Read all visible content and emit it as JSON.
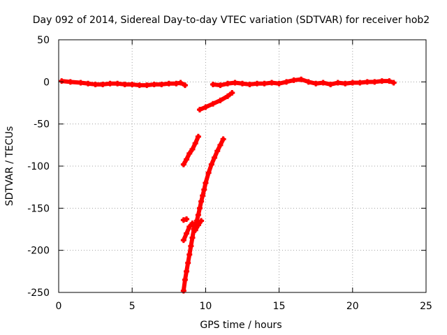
{
  "chart_data": {
    "type": "scatter",
    "title": "Day 092 of 2014, Sidereal Day-to-day VTEC variation (SDTVAR) for receiver hob2",
    "xlabel": "GPS time / hours",
    "ylabel": "SDTVAR / TECUs",
    "xlim": [
      0,
      25
    ],
    "ylim": [
      -250,
      50
    ],
    "xticks": [
      0,
      5,
      10,
      15,
      20,
      25
    ],
    "yticks": [
      -250,
      -200,
      -150,
      -100,
      -50,
      0,
      50
    ],
    "xtick_labels": [
      "0",
      "5",
      "10",
      "15",
      "20",
      "25"
    ],
    "ytick_labels": [
      "-250",
      "-200",
      "-150",
      "-100",
      "-50",
      "0",
      "50"
    ],
    "grid": true,
    "marker": "plus",
    "color": "#ff0000",
    "series": [
      {
        "name": "main-arc-early",
        "x": [
          0.2,
          0.8,
          1.5,
          2.0,
          2.5,
          3.0,
          3.5,
          4.0,
          4.5,
          5.0,
          5.5,
          6.0,
          6.5,
          7.0,
          7.5,
          8.0,
          8.3,
          8.6
        ],
        "y": [
          1,
          0,
          -1,
          -2,
          -3,
          -3,
          -2,
          -2,
          -3,
          -3,
          -4,
          -4,
          -3,
          -3,
          -2,
          -2,
          -1,
          -4
        ]
      },
      {
        "name": "main-arc-late",
        "x": [
          10.5,
          11.0,
          11.5,
          12.0,
          12.5,
          13.0,
          13.5,
          14.0,
          14.5,
          15.0,
          15.5,
          16.0,
          16.5,
          17.0,
          17.5,
          18.0,
          18.5,
          19.0,
          19.5,
          20.0,
          20.5,
          21.0,
          21.5,
          22.0,
          22.5,
          22.8
        ],
        "y": [
          -3,
          -4,
          -2,
          -1,
          -2,
          -3,
          -2,
          -2,
          -1,
          -2,
          0,
          2,
          3,
          0,
          -2,
          -1,
          -3,
          -1,
          -2,
          -1,
          -1,
          0,
          0,
          1,
          1,
          -1
        ]
      },
      {
        "name": "arc-a",
        "x": [
          9.6,
          10.0,
          10.5,
          11.0,
          11.5,
          11.8
        ],
        "y": [
          -33,
          -30,
          -26,
          -22,
          -17,
          -13
        ]
      },
      {
        "name": "arc-b",
        "x": [
          8.5,
          8.7,
          8.9,
          9.1,
          9.3,
          9.5
        ],
        "y": [
          -98,
          -92,
          -85,
          -80,
          -73,
          -65
        ]
      },
      {
        "name": "arc-c",
        "x": [
          8.5,
          8.6,
          8.7,
          8.8,
          8.9,
          9.0,
          9.1,
          9.2,
          9.3,
          9.4,
          9.5,
          9.6,
          9.7,
          9.8,
          9.9,
          10.0,
          10.2,
          10.4,
          10.6,
          10.8,
          11.0,
          11.2
        ],
        "y": [
          -248,
          -235,
          -225,
          -215,
          -205,
          -195,
          -185,
          -175,
          -170,
          -165,
          -158,
          -150,
          -142,
          -135,
          -128,
          -120,
          -108,
          -98,
          -90,
          -82,
          -75,
          -68
        ]
      },
      {
        "name": "arc-d",
        "x": [
          8.5,
          8.7,
          8.9,
          9.1,
          9.3,
          9.5,
          9.7
        ],
        "y": [
          -188,
          -180,
          -172,
          -168,
          -176,
          -170,
          -165
        ]
      },
      {
        "name": "arc-e",
        "x": [
          8.5,
          8.7
        ],
        "y": [
          -164,
          -163
        ]
      }
    ]
  }
}
